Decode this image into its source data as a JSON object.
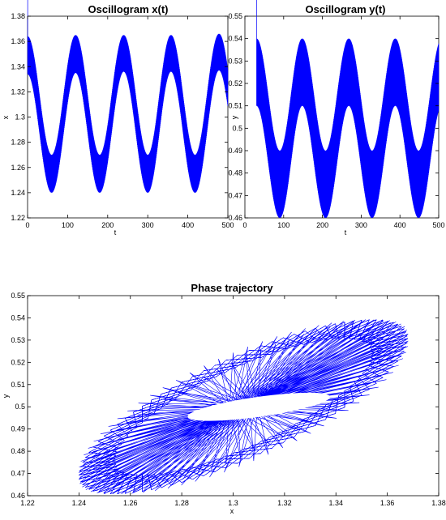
{
  "chart_data": [
    {
      "type": "line",
      "title": "Oscillogram x(t)",
      "xlabel": "t",
      "ylabel": "x",
      "xlim": [
        0,
        500
      ],
      "ylim": [
        1.22,
        1.38
      ],
      "xticks": [
        "0",
        "100",
        "200",
        "300",
        "400",
        "500"
      ],
      "yticks": [
        "1.22",
        "1.24",
        "1.26",
        "1.28",
        "1.3",
        "1.32",
        "1.34",
        "1.36",
        "1.38"
      ],
      "grid": false,
      "series": [
        {
          "color": "#0000ff",
          "envelope_peaks": [
            {
              "t": 0,
              "upper": 1.364,
              "lower": 1.334
            },
            {
              "t": 120,
              "upper": 1.365,
              "lower": 1.335
            },
            {
              "t": 240,
              "upper": 1.365,
              "lower": 1.336
            },
            {
              "t": 358,
              "upper": 1.365,
              "lower": 1.336
            },
            {
              "t": 478,
              "upper": 1.366,
              "lower": 1.337
            }
          ],
          "envelope_troughs": [
            {
              "t": 60,
              "upper": 1.27,
              "lower": 1.24
            },
            {
              "t": 180,
              "upper": 1.27,
              "lower": 1.24
            },
            {
              "t": 300,
              "upper": 1.27,
              "lower": 1.24
            },
            {
              "t": 418,
              "upper": 1.27,
              "lower": 1.24
            }
          ]
        }
      ]
    },
    {
      "type": "line",
      "title": "Oscillogram y(t)",
      "xlabel": "t",
      "ylabel": "y",
      "xlim": [
        0,
        500
      ],
      "ylim": [
        0.46,
        0.55
      ],
      "xticks": [
        "0",
        "100",
        "200",
        "300",
        "400",
        "500"
      ],
      "yticks": [
        "0.46",
        "0.47",
        "0.48",
        "0.49",
        "0.5",
        "0.51",
        "0.52",
        "0.53",
        "0.54",
        "0.55"
      ],
      "grid": false,
      "series": [
        {
          "color": "#0000ff",
          "envelope_peaks": [
            {
              "t": 30,
              "upper": 0.54,
              "lower": 0.51
            },
            {
              "t": 148,
              "upper": 0.54,
              "lower": 0.51
            },
            {
              "t": 268,
              "upper": 0.54,
              "lower": 0.51
            },
            {
              "t": 388,
              "upper": 0.54,
              "lower": 0.51
            }
          ],
          "envelope_troughs": [
            {
              "t": 90,
              "upper": 0.49,
              "lower": 0.46
            },
            {
              "t": 208,
              "upper": 0.49,
              "lower": 0.46
            },
            {
              "t": 328,
              "upper": 0.49,
              "lower": 0.46
            },
            {
              "t": 448,
              "upper": 0.49,
              "lower": 0.46
            }
          ]
        }
      ]
    },
    {
      "type": "line",
      "title": "Phase trajectory",
      "xlabel": "x",
      "ylabel": "y",
      "xlim": [
        1.22,
        1.38
      ],
      "ylim": [
        0.46,
        0.55
      ],
      "xticks": [
        "1.22",
        "1.24",
        "1.26",
        "1.28",
        "1.3",
        "1.32",
        "1.34",
        "1.36",
        "1.38"
      ],
      "yticks": [
        "0.46",
        "0.47",
        "0.48",
        "0.49",
        "0.5",
        "0.51",
        "0.52",
        "0.53",
        "0.54",
        "0.55"
      ],
      "grid": false,
      "series": [
        {
          "color": "#0000ff",
          "trajectory_extent": {
            "x": [
              1.24,
              1.368
            ],
            "y": [
              0.46,
              0.54
            ]
          },
          "inner_hole": {
            "x": [
              1.29,
              1.33
            ],
            "y": [
              0.495,
              0.505
            ]
          }
        }
      ]
    }
  ]
}
